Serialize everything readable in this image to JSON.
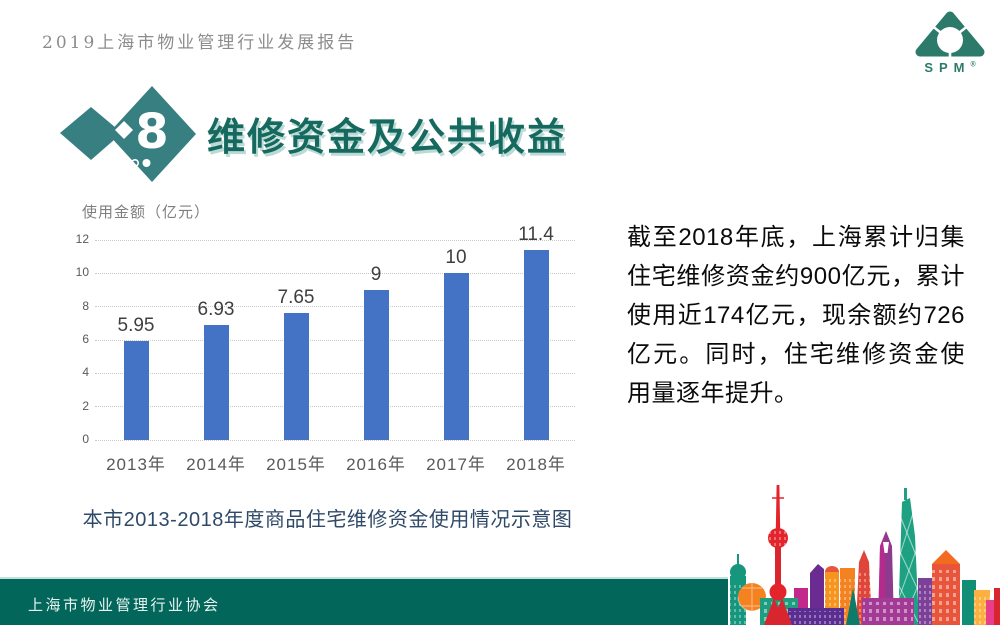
{
  "header": {
    "report_title": "2019上海市物业管理行业发展报告"
  },
  "logo": {
    "wordmark": "SPM",
    "registered": "®"
  },
  "section": {
    "number": "8",
    "title": "维修资金及公共收益"
  },
  "chart_data": {
    "type": "bar",
    "title": "使用金额（亿元）",
    "categories": [
      "2013年",
      "2014年",
      "2015年",
      "2016年",
      "2017年",
      "2018年"
    ],
    "values": [
      5.95,
      6.93,
      7.65,
      9,
      10,
      11.4
    ],
    "value_labels": [
      "5.95",
      "6.93",
      "7.65",
      "9",
      "10",
      "11.4"
    ],
    "ylim": [
      0,
      12
    ],
    "yticks": [
      0,
      2,
      4,
      6,
      8,
      10,
      12
    ],
    "grid": true,
    "legend": false,
    "bar_color": "#4472c4"
  },
  "caption": {
    "text": "本市2013-2018年度商品住宅维修资金使用情况示意图"
  },
  "body": {
    "paragraph": "截至2018年底，上海累计归集住宅维修资金约900亿元，累计使用近174亿元，现余额约726亿元。同时，住宅维修资金使用量逐年提升。"
  },
  "footer": {
    "organization": "上海市物业管理行业协会"
  },
  "colors": {
    "accent_teal": "#387f82",
    "title_teal": "#15695e",
    "logo_green": "#2b7a6a",
    "footer_teal": "#02665a",
    "bar_blue": "#4472c4",
    "header_gray": "#8c8c8c",
    "axis_gray": "#595959",
    "chart_title_gray": "#7f7f7f",
    "caption_navy": "#2f4a68"
  }
}
